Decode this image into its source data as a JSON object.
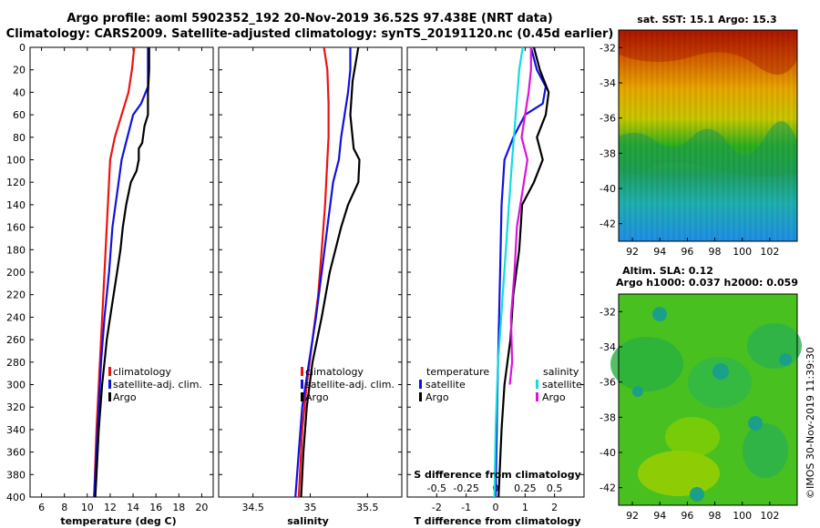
{
  "title": {
    "line1": "Argo profile: aoml 5902352_192 20-Nov-2019 36.52S 97.438E (NRT data)",
    "line2": "Climatology: CARS2009. Satellite-adjusted climatology: synTS_20191120.nc (0.45d earlier)"
  },
  "colors": {
    "climatology": "#ee1111",
    "satellite": "#1111dd",
    "argo": "#000000",
    "salinity_satellite": "#11dddd",
    "salinity_argo": "#dd11dd"
  },
  "chart_data": [
    {
      "type": "line",
      "name": "temperature-profile",
      "xlabel": "temperature (deg C)",
      "ylabel": "",
      "xlim": [
        5,
        21
      ],
      "ylim": [
        400,
        0
      ],
      "xticks": [
        "6",
        "8",
        "10",
        "12",
        "14",
        "16",
        "18",
        "20"
      ],
      "xtick_values": [
        6,
        8,
        10,
        12,
        14,
        16,
        18,
        20
      ],
      "yticks": [
        "0",
        "20",
        "40",
        "60",
        "80",
        "100",
        "120",
        "140",
        "160",
        "180",
        "200",
        "220",
        "240",
        "260",
        "280",
        "300",
        "320",
        "340",
        "360",
        "380",
        "400"
      ],
      "ytick_values": [
        0,
        20,
        40,
        60,
        80,
        100,
        120,
        140,
        160,
        180,
        200,
        220,
        240,
        260,
        280,
        300,
        320,
        340,
        360,
        380,
        400
      ],
      "legend": [
        "climatology",
        "satellite-adj. clim.",
        "Argo"
      ],
      "series": [
        {
          "name": "climatology",
          "color": "#ee1111",
          "depth": [
            0,
            20,
            40,
            60,
            80,
            100,
            140,
            200,
            260,
            300,
            340,
            400
          ],
          "values": [
            14.1,
            13.9,
            13.6,
            13.0,
            12.4,
            12.0,
            11.8,
            11.5,
            11.2,
            11.0,
            10.8,
            10.6
          ]
        },
        {
          "name": "satellite-adj. clim.",
          "color": "#1111dd",
          "depth": [
            0,
            20,
            35,
            50,
            60,
            80,
            100,
            130,
            160,
            200,
            240,
            280,
            320,
            360,
            400
          ],
          "values": [
            15.3,
            15.3,
            15.3,
            14.7,
            14.0,
            13.5,
            13.0,
            12.6,
            12.2,
            11.9,
            11.5,
            11.2,
            11.0,
            10.8,
            10.6
          ]
        },
        {
          "name": "Argo",
          "color": "#000000",
          "depth": [
            0,
            20,
            40,
            60,
            70,
            85,
            90,
            100,
            110,
            120,
            140,
            160,
            180,
            200,
            220,
            240,
            260,
            280,
            300,
            340,
            380,
            400
          ],
          "values": [
            15.4,
            15.4,
            15.3,
            15.3,
            15.0,
            14.8,
            14.5,
            14.5,
            14.3,
            13.8,
            13.4,
            13.1,
            12.9,
            12.6,
            12.3,
            12.0,
            11.7,
            11.5,
            11.3,
            11.0,
            10.8,
            10.7
          ]
        }
      ]
    },
    {
      "type": "line",
      "name": "salinity-profile",
      "xlabel": "salinity",
      "ylabel": "",
      "xlim": [
        34.2,
        35.8
      ],
      "ylim": [
        400,
        0
      ],
      "xticks": [
        "34.5",
        "35",
        "35.5"
      ],
      "xtick_values": [
        34.5,
        35.0,
        35.5
      ],
      "legend": [
        "climatology",
        "satellite-adj. clim.",
        "Argo"
      ],
      "series": [
        {
          "name": "climatology",
          "color": "#ee1111",
          "depth": [
            0,
            20,
            50,
            80,
            100,
            140,
            180,
            220,
            260,
            300,
            340,
            400
          ],
          "values": [
            35.12,
            35.15,
            35.16,
            35.16,
            35.15,
            35.13,
            35.1,
            35.07,
            35.02,
            34.97,
            34.93,
            34.9
          ]
        },
        {
          "name": "satellite-adj. clim.",
          "color": "#1111dd",
          "depth": [
            0,
            20,
            40,
            60,
            80,
            100,
            120,
            160,
            200,
            240,
            280,
            320,
            360,
            400
          ],
          "values": [
            35.35,
            35.35,
            35.33,
            35.3,
            35.27,
            35.25,
            35.2,
            35.15,
            35.1,
            35.05,
            34.99,
            34.93,
            34.9,
            34.87
          ]
        },
        {
          "name": "Argo",
          "color": "#000000",
          "depth": [
            0,
            30,
            60,
            90,
            100,
            120,
            140,
            160,
            200,
            240,
            280,
            320,
            360,
            400
          ],
          "values": [
            35.42,
            35.37,
            35.35,
            35.38,
            35.43,
            35.42,
            35.33,
            35.27,
            35.17,
            35.1,
            35.02,
            34.97,
            34.94,
            34.92
          ]
        }
      ]
    },
    {
      "type": "line",
      "name": "difference-profile",
      "xlabel": "T difference from climatology",
      "xlabel2": "S difference from climatology",
      "xlim": [
        -3,
        3
      ],
      "ylim": [
        400,
        0
      ],
      "xticks": [
        "-2",
        "-1",
        "0",
        "1",
        "2"
      ],
      "xtick_values": [
        -2,
        -1,
        0,
        1,
        2
      ],
      "xticks2": [
        "-0.5",
        "-0.25",
        "0",
        "0.25",
        "0.5"
      ],
      "xtick2_values": [
        -0.5,
        -0.25,
        0,
        0.25,
        0.5
      ],
      "legend_temperature_title": "temperature",
      "legend_salinity_title": "salinity",
      "legend_temperature": [
        "satellite",
        "Argo"
      ],
      "legend_salinity": [
        "satellite",
        "Argo"
      ],
      "series": [
        {
          "name": "T satellite",
          "color": "#1111dd",
          "depth": [
            0,
            20,
            35,
            50,
            60,
            80,
            100,
            140,
            200,
            260,
            320,
            400
          ],
          "values": [
            1.2,
            1.4,
            1.7,
            1.6,
            1.0,
            0.6,
            0.3,
            0.2,
            0.15,
            0.1,
            0.05,
            0.0
          ]
        },
        {
          "name": "T Argo",
          "color": "#000000",
          "depth": [
            0,
            20,
            40,
            60,
            80,
            100,
            120,
            140,
            180,
            220,
            260,
            300,
            340,
            400
          ],
          "values": [
            1.3,
            1.5,
            1.8,
            1.7,
            1.4,
            1.6,
            1.3,
            0.9,
            0.8,
            0.6,
            0.5,
            0.3,
            0.2,
            0.1
          ]
        },
        {
          "name": "S satellite",
          "color": "#11dddd",
          "depth": [
            0,
            20,
            60,
            100,
            160,
            220,
            280,
            340,
            400
          ],
          "values": [
            0.23,
            0.2,
            0.17,
            0.14,
            0.1,
            0.06,
            0.02,
            0.0,
            -0.01
          ]
        },
        {
          "name": "S Argo",
          "color": "#dd11dd",
          "depth": [
            0,
            20,
            40,
            60,
            80,
            100,
            120,
            160,
            200,
            240,
            280,
            300
          ],
          "values": [
            0.3,
            0.3,
            0.28,
            0.25,
            0.22,
            0.27,
            0.24,
            0.18,
            0.16,
            0.13,
            0.14,
            0.12
          ]
        }
      ]
    },
    {
      "type": "heatmap",
      "name": "sst-map",
      "title": "sat. SST: 15.1 Argo: 15.3",
      "xticks": [
        "92",
        "94",
        "96",
        "98",
        "100",
        "102"
      ],
      "xtick_values": [
        92,
        94,
        96,
        98,
        100,
        102
      ],
      "yticks": [
        "-32",
        "-34",
        "-36",
        "-38",
        "-40",
        "-42"
      ],
      "ytick_values": [
        -32,
        -34,
        -36,
        -38,
        -40,
        -42
      ],
      "xlim": [
        91,
        104
      ],
      "ylim": [
        -43,
        -31
      ]
    },
    {
      "type": "heatmap",
      "name": "sla-map",
      "title": "Altim. SLA: 0.12",
      "subtitle": "Argo h1000: 0.037 h2000: 0.059",
      "xticks": [
        "92",
        "94",
        "96",
        "98",
        "100",
        "102"
      ],
      "xtick_values": [
        92,
        94,
        96,
        98,
        100,
        102
      ],
      "yticks": [
        "-32",
        "-34",
        "-36",
        "-38",
        "-40",
        "-42"
      ],
      "ytick_values": [
        -32,
        -34,
        -36,
        -38,
        -40,
        -42
      ],
      "xlim": [
        91,
        104
      ],
      "ylim": [
        -43,
        -31
      ]
    }
  ],
  "credit": "©IMOS 30-Nov-2019 11:39:30"
}
